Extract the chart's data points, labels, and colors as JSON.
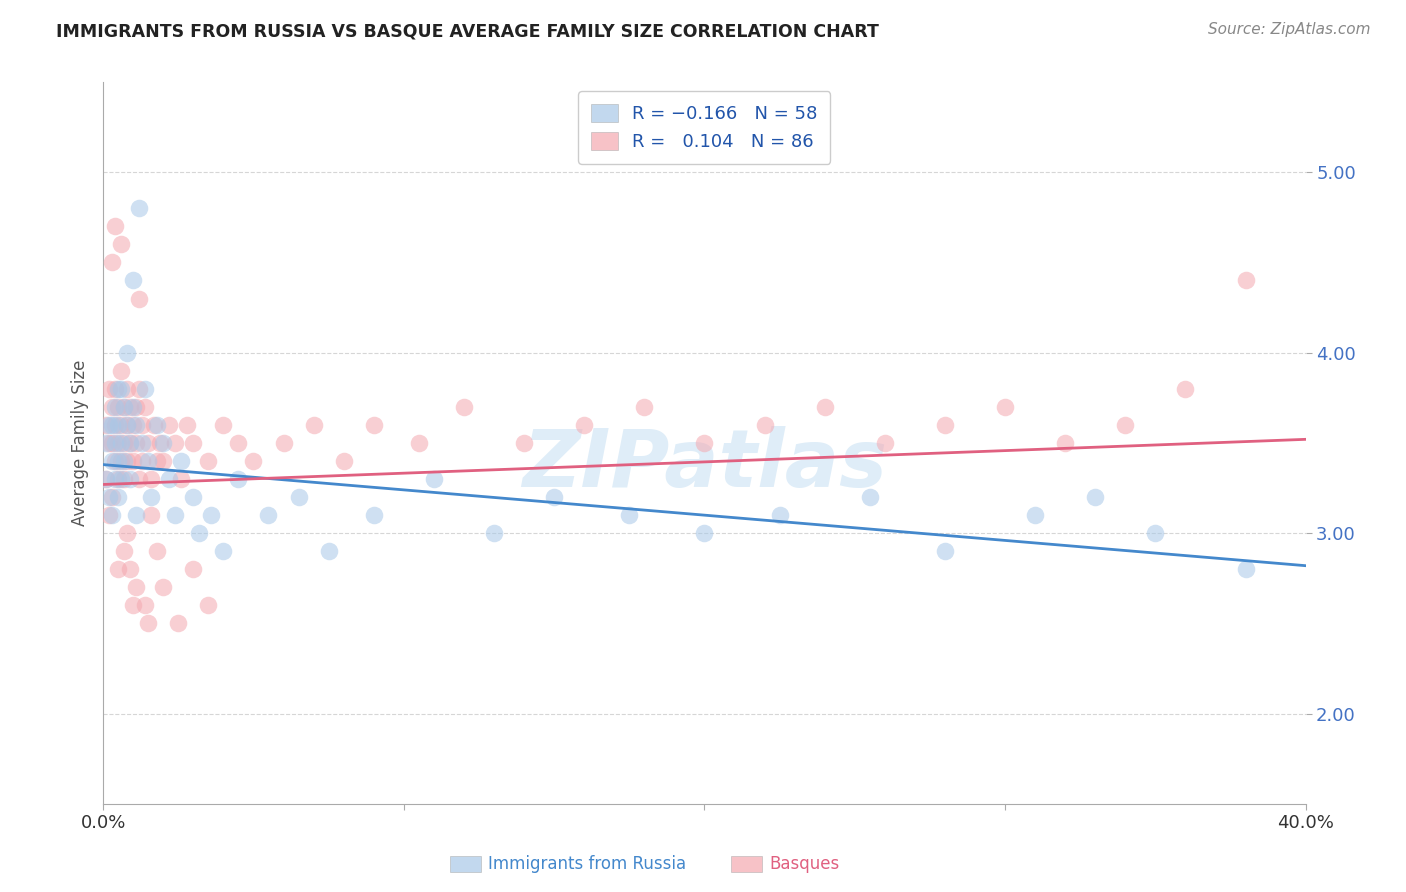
{
  "title": "IMMIGRANTS FROM RUSSIA VS BASQUE AVERAGE FAMILY SIZE CORRELATION CHART",
  "source": "Source: ZipAtlas.com",
  "ylabel": "Average Family Size",
  "xlim": [
    0.0,
    0.4
  ],
  "ylim": [
    1.5,
    5.5
  ],
  "yticks": [
    2.0,
    3.0,
    4.0,
    5.0
  ],
  "color_blue": "#a8c8e8",
  "color_pink": "#f4a8b0",
  "color_blue_line": "#4488cc",
  "color_pink_line": "#e06080",
  "grid_color": "#cccccc",
  "background_color": "#ffffff",
  "blue_line_x0": 0.0,
  "blue_line_y0": 3.38,
  "blue_line_x1": 0.4,
  "blue_line_y1": 2.82,
  "pink_line_x0": 0.0,
  "pink_line_y0": 3.27,
  "pink_line_x1": 0.4,
  "pink_line_y1": 3.52,
  "russia_x": [
    0.001,
    0.001,
    0.002,
    0.002,
    0.003,
    0.003,
    0.003,
    0.004,
    0.004,
    0.004,
    0.005,
    0.005,
    0.005,
    0.005,
    0.006,
    0.006,
    0.006,
    0.007,
    0.007,
    0.008,
    0.008,
    0.009,
    0.009,
    0.01,
    0.01,
    0.011,
    0.011,
    0.012,
    0.013,
    0.014,
    0.015,
    0.016,
    0.018,
    0.02,
    0.022,
    0.024,
    0.026,
    0.03,
    0.032,
    0.036,
    0.04,
    0.045,
    0.055,
    0.065,
    0.075,
    0.09,
    0.11,
    0.13,
    0.15,
    0.175,
    0.2,
    0.225,
    0.255,
    0.28,
    0.31,
    0.33,
    0.35,
    0.38
  ],
  "russia_y": [
    3.3,
    3.5,
    3.2,
    3.6,
    3.1,
    3.4,
    3.6,
    3.3,
    3.5,
    3.7,
    3.2,
    3.4,
    3.6,
    3.8,
    3.3,
    3.5,
    3.8,
    3.4,
    3.7,
    3.6,
    4.0,
    3.5,
    3.3,
    4.4,
    3.7,
    3.6,
    3.1,
    4.8,
    3.5,
    3.8,
    3.4,
    3.2,
    3.6,
    3.5,
    3.3,
    3.1,
    3.4,
    3.2,
    3.0,
    3.1,
    2.9,
    3.3,
    3.1,
    3.2,
    2.9,
    3.1,
    3.3,
    3.0,
    3.2,
    3.1,
    3.0,
    3.1,
    3.2,
    2.9,
    3.1,
    3.2,
    3.0,
    2.8
  ],
  "basque_x": [
    0.001,
    0.001,
    0.002,
    0.002,
    0.002,
    0.003,
    0.003,
    0.003,
    0.004,
    0.004,
    0.004,
    0.005,
    0.005,
    0.005,
    0.006,
    0.006,
    0.006,
    0.007,
    0.007,
    0.007,
    0.008,
    0.008,
    0.008,
    0.009,
    0.009,
    0.01,
    0.01,
    0.011,
    0.011,
    0.012,
    0.012,
    0.013,
    0.013,
    0.014,
    0.015,
    0.016,
    0.017,
    0.018,
    0.019,
    0.02,
    0.022,
    0.024,
    0.026,
    0.028,
    0.03,
    0.035,
    0.04,
    0.045,
    0.05,
    0.06,
    0.07,
    0.08,
    0.09,
    0.105,
    0.12,
    0.14,
    0.16,
    0.18,
    0.2,
    0.22,
    0.24,
    0.26,
    0.28,
    0.3,
    0.32,
    0.34,
    0.36,
    0.38,
    0.01,
    0.015,
    0.02,
    0.025,
    0.03,
    0.035,
    0.005,
    0.007,
    0.006,
    0.008,
    0.009,
    0.011,
    0.012,
    0.014,
    0.016,
    0.018,
    0.003,
    0.004
  ],
  "basque_y": [
    3.3,
    3.6,
    3.1,
    3.5,
    3.8,
    3.2,
    3.5,
    3.7,
    3.4,
    3.6,
    3.8,
    3.3,
    3.5,
    3.7,
    3.4,
    3.6,
    3.9,
    3.5,
    3.7,
    3.3,
    3.6,
    3.8,
    3.4,
    3.5,
    3.7,
    3.6,
    3.4,
    3.7,
    3.5,
    3.8,
    3.3,
    3.6,
    3.4,
    3.7,
    3.5,
    3.3,
    3.6,
    3.4,
    3.5,
    3.4,
    3.6,
    3.5,
    3.3,
    3.6,
    3.5,
    3.4,
    3.6,
    3.5,
    3.4,
    3.5,
    3.6,
    3.4,
    3.6,
    3.5,
    3.7,
    3.5,
    3.6,
    3.7,
    3.5,
    3.6,
    3.7,
    3.5,
    3.6,
    3.7,
    3.5,
    3.6,
    3.8,
    4.4,
    2.6,
    2.5,
    2.7,
    2.5,
    2.8,
    2.6,
    2.8,
    2.9,
    4.6,
    3.0,
    2.8,
    2.7,
    4.3,
    2.6,
    3.1,
    2.9,
    4.5,
    4.7
  ]
}
